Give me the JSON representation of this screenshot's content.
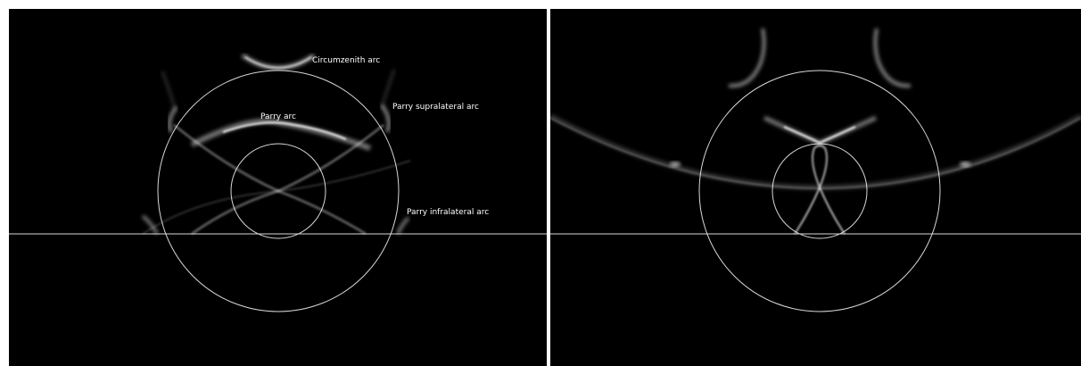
{
  "labels": {
    "circumzenith": "Circumzenith arc",
    "parry": "Parry arc",
    "supralateral": "Parry supralateral arc",
    "infralateral": "Parry infralateral arc"
  },
  "colors": {
    "background": "#000000",
    "guide_lines": "#cfcfcf",
    "halo": "#ffffff"
  }
}
